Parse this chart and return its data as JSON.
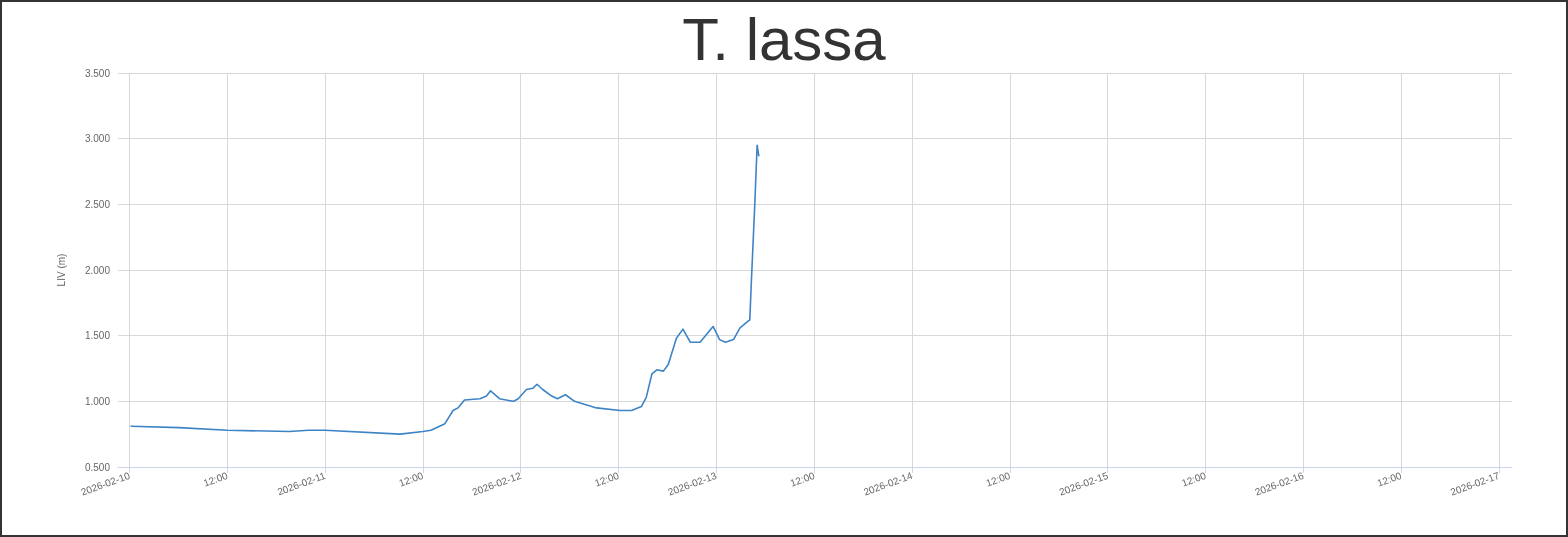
{
  "chart_data": {
    "type": "line",
    "title": "T. lassa",
    "ylabel": "LIV (m)",
    "series": [
      {
        "color": "#3d84c6",
        "x": [
          "2026-02-10T00:12",
          "2026-02-10T06:06",
          "2026-02-10T12:00",
          "2026-02-10T19:36",
          "2026-02-10T22:00",
          "2026-02-11T00:00",
          "2026-02-11T09:12",
          "2026-02-11T12:00",
          "2026-02-11T13:00",
          "2026-02-11T14:42",
          "2026-02-11T15:42",
          "2026-02-11T16:18",
          "2026-02-11T17:06",
          "2026-02-11T19:00",
          "2026-02-11T19:48",
          "2026-02-11T20:18",
          "2026-02-11T21:24",
          "2026-02-11T23:06",
          "2026-02-11T23:42",
          "2026-02-12T00:42",
          "2026-02-12T01:30",
          "2026-02-12T02:00",
          "2026-02-12T02:42",
          "2026-02-12T03:48",
          "2026-02-12T04:30",
          "2026-02-12T05:30",
          "2026-02-12T06:36",
          "2026-02-12T09:18",
          "2026-02-12T12:12",
          "2026-02-12T13:36",
          "2026-02-12T14:48",
          "2026-02-12T15:24",
          "2026-02-12T16:06",
          "2026-02-12T16:42",
          "2026-02-12T17:30",
          "2026-02-12T18:06",
          "2026-02-12T19:06",
          "2026-02-12T19:54",
          "2026-02-12T20:48",
          "2026-02-12T22:00",
          "2026-02-12T23:36",
          "2026-02-13T00:24",
          "2026-02-13T01:06",
          "2026-02-13T02:06",
          "2026-02-13T02:54",
          "2026-02-13T03:54",
          "2026-02-13T04:06",
          "2026-02-13T04:18",
          "2026-02-13T04:42",
          "2026-02-13T05:00",
          "2026-02-13T05:12"
        ],
        "values": [
          0.81,
          0.8,
          0.78,
          0.77,
          0.78,
          0.78,
          0.75,
          0.77,
          0.78,
          0.83,
          0.93,
          0.95,
          1.01,
          1.02,
          1.04,
          1.08,
          1.02,
          1.0,
          1.02,
          1.09,
          1.1,
          1.13,
          1.09,
          1.04,
          1.02,
          1.05,
          1.0,
          0.95,
          0.93,
          0.93,
          0.96,
          1.03,
          1.21,
          1.24,
          1.23,
          1.28,
          1.48,
          1.55,
          1.45,
          1.45,
          1.57,
          1.47,
          1.45,
          1.47,
          1.56,
          1.61,
          1.62,
          1.92,
          2.48,
          2.95,
          2.87
        ]
      }
    ],
    "xlim": [
      "2026-02-09T22:36",
      "2026-02-17T01:36"
    ],
    "xticks": [
      "2026-02-10",
      {
        "value": "2026-02-10T12:00",
        "label": "12:00"
      },
      "2026-02-11",
      {
        "value": "2026-02-11T12:00",
        "label": "12:00"
      },
      "2026-02-12",
      {
        "value": "2026-02-12T12:00",
        "label": "12:00"
      },
      "2026-02-13",
      {
        "value": "2026-02-13T12:00",
        "label": "12:00"
      },
      "2026-02-14",
      {
        "value": "2026-02-14T12:00",
        "label": "12:00"
      },
      "2026-02-15",
      {
        "value": "2026-02-15T12:00",
        "label": "12:00"
      },
      "2026-02-16",
      {
        "value": "2026-02-16T12:00",
        "label": "12:00"
      },
      "2026-02-17"
    ],
    "ylim": [
      0.5,
      3.5
    ],
    "yticks": [
      {
        "value": 0.5,
        "label": "0.500"
      },
      {
        "value": 1,
        "label": "1.000"
      },
      {
        "value": 1.5,
        "label": "1.500"
      },
      {
        "value": 2,
        "label": "2.000"
      },
      {
        "value": 2.5,
        "label": "2.500"
      },
      {
        "value": 3,
        "label": "3.000"
      },
      {
        "value": 3.5,
        "label": "3.500"
      }
    ],
    "grid": true,
    "marker": "none",
    "line_style": "solid"
  }
}
